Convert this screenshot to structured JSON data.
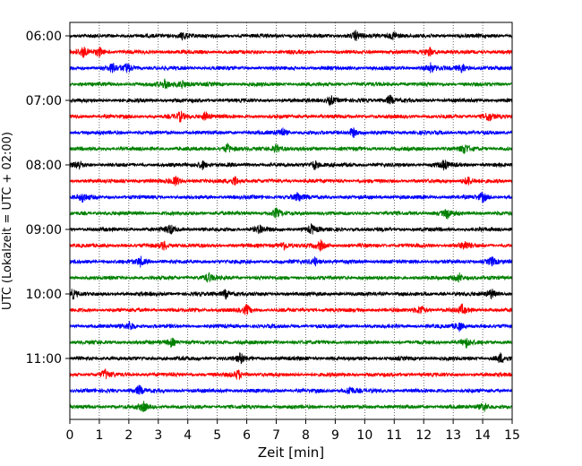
{
  "chart_data": {
    "type": "line",
    "title": "",
    "xlabel": "Zeit  [min]",
    "ylabel": "UTC (Lokalzeit = UTC + 02:00)",
    "xlim": [
      0,
      15
    ],
    "x_ticks": [
      "0",
      "1",
      "2",
      "3",
      "4",
      "5",
      "6",
      "7",
      "8",
      "9",
      "10",
      "11",
      "12",
      "13",
      "14",
      "15"
    ],
    "y_ticks": [
      "06:00",
      "07:00",
      "08:00",
      "09:00",
      "10:00",
      "11:00"
    ],
    "grid": "vertical dotted at each minute",
    "trace_interval_minutes": 15,
    "first_trace": "06:00",
    "trace_count": 24,
    "trace_colors": [
      "#000000",
      "#ff0000",
      "#0000ff",
      "#008000"
    ],
    "series": [
      {
        "start": "06:00",
        "events": [
          3.85,
          9.7,
          11.0
        ]
      },
      {
        "start": "06:15",
        "events": [
          1.0,
          0.45,
          12.2
        ]
      },
      {
        "start": "06:30",
        "events": [
          1.45,
          1.95,
          12.25,
          13.3
        ]
      },
      {
        "start": "06:45",
        "events": [
          3.25,
          3.8
        ]
      },
      {
        "start": "07:00",
        "events": [
          10.85,
          8.85
        ]
      },
      {
        "start": "07:15",
        "events": [
          3.75,
          4.6,
          14.2
        ]
      },
      {
        "start": "07:30",
        "events": [
          7.2,
          9.6
        ]
      },
      {
        "start": "07:45",
        "events": [
          5.35,
          7.0,
          13.4
        ]
      },
      {
        "start": "08:00",
        "events": [
          0.3,
          4.5,
          8.3,
          12.7
        ]
      },
      {
        "start": "08:15",
        "events": [
          3.6,
          5.6,
          13.5
        ]
      },
      {
        "start": "08:30",
        "events": [
          0.45,
          7.75,
          14.0
        ]
      },
      {
        "start": "08:45",
        "events": [
          7.0,
          12.8
        ]
      },
      {
        "start": "09:00",
        "events": [
          3.4,
          6.45,
          8.2
        ]
      },
      {
        "start": "09:15",
        "events": [
          3.2,
          7.25,
          8.5,
          13.4
        ]
      },
      {
        "start": "09:30",
        "events": [
          2.4,
          8.3,
          14.3
        ]
      },
      {
        "start": "09:45",
        "events": [
          4.7,
          13.2
        ]
      },
      {
        "start": "10:00",
        "events": [
          0.1,
          5.3,
          14.3
        ]
      },
      {
        "start": "10:15",
        "events": [
          6.0,
          11.9,
          13.3
        ]
      },
      {
        "start": "10:30",
        "events": [
          2.05,
          13.2
        ]
      },
      {
        "start": "10:45",
        "events": [
          3.45,
          13.45
        ]
      },
      {
        "start": "11:00",
        "events": [
          5.8,
          14.6
        ]
      },
      {
        "start": "11:15",
        "events": [
          1.2,
          5.7
        ]
      },
      {
        "start": "11:30",
        "events": [
          2.35,
          9.5
        ]
      },
      {
        "start": "11:45",
        "events": [
          2.5,
          14.05
        ]
      }
    ]
  }
}
